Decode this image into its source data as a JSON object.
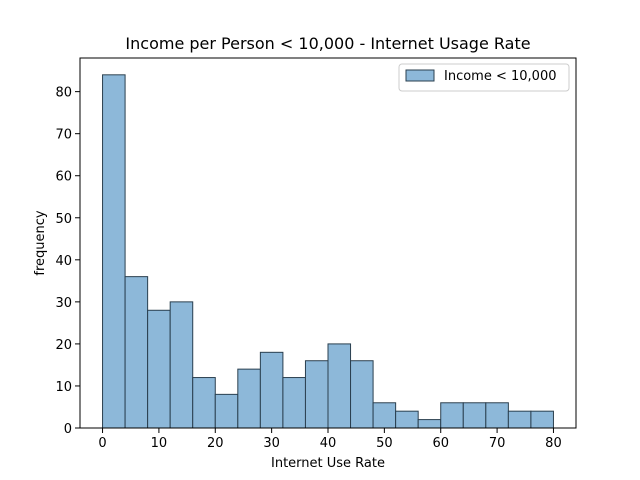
{
  "chart_data": {
    "type": "bar",
    "title": "Income per Person < 10,000 - Internet Usage Rate",
    "xlabel": "Internet Use Rate",
    "ylabel": "frequency",
    "bin_edges": [
      0,
      4,
      8,
      12,
      16,
      20,
      24,
      28,
      32,
      36,
      40,
      44,
      48,
      52,
      56,
      60,
      64,
      68,
      72,
      76,
      80
    ],
    "series": [
      {
        "name": "Income < 10,000",
        "color": "#8db8d9",
        "edge_color": "#2a3f4f",
        "values": [
          84,
          36,
          28,
          30,
          12,
          8,
          14,
          18,
          12,
          16,
          20,
          16,
          6,
          4,
          2,
          6,
          6,
          6,
          4,
          4
        ]
      }
    ],
    "xlim": [
      -4,
      84
    ],
    "ylim": [
      0,
      88
    ],
    "xticks": [
      0,
      10,
      20,
      30,
      40,
      50,
      60,
      70,
      80
    ],
    "yticks": [
      0,
      10,
      20,
      30,
      40,
      50,
      60,
      70,
      80
    ],
    "grid": false,
    "legend_position": "top-right"
  }
}
